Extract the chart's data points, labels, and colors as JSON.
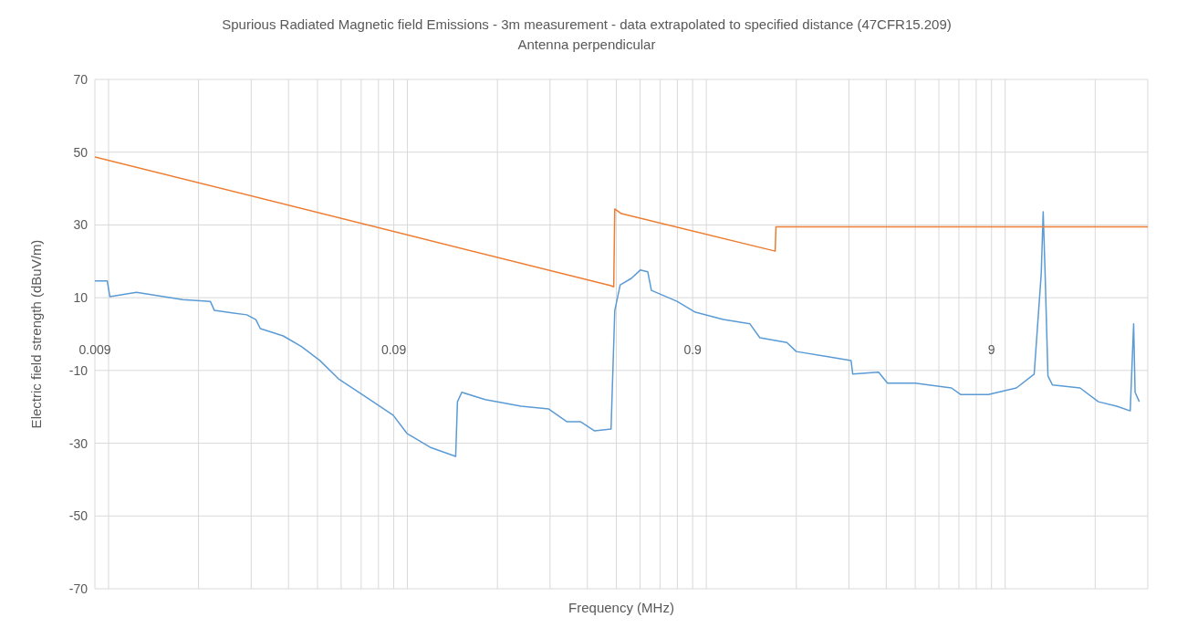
{
  "chart_data": {
    "type": "line",
    "title": "Spurious Radiated Magnetic field Emissions - 3m measurement - data extrapolated to specified distance (47CFR15.209)",
    "subtitle": "Antenna perpendicular",
    "xlabel": "Frequency (MHz)",
    "ylabel": "Electric field strength (dBuV/m)",
    "log": "x",
    "grid": true,
    "xlim": [
      0.009,
      30
    ],
    "xticks": [
      0.009,
      0.09,
      0.9,
      9
    ],
    "ylim": [
      -70,
      70
    ],
    "yticks": [
      -70,
      -50,
      -30,
      -10,
      10,
      30,
      50,
      70
    ],
    "series": [
      {
        "color": "#5b9bd5",
        "x": [
          0.009,
          0.0099,
          0.0101,
          0.0124,
          0.0177,
          0.0219,
          0.0226,
          0.029,
          0.0311,
          0.0322,
          0.0384,
          0.0443,
          0.051,
          0.0588,
          0.0726,
          0.0896,
          0.0996,
          0.119,
          0.145,
          0.147,
          0.152,
          0.182,
          0.24,
          0.297,
          0.342,
          0.38,
          0.423,
          0.48,
          0.494,
          0.515,
          0.561,
          0.601,
          0.637,
          0.655,
          0.798,
          0.919,
          1.14,
          1.4,
          1.51,
          1.86,
          2.0,
          2.47,
          3.05,
          3.09,
          3.77,
          4.04,
          5.0,
          6.61,
          7.09,
          8.78,
          10.9,
          12.5,
          13.2,
          13.4,
          13.6,
          13.9,
          14.4,
          17.8,
          20.5,
          23.6,
          26.2,
          26.9,
          27.2,
          28.1
        ],
        "values": [
          14.6,
          14.6,
          10.3,
          11.5,
          9.5,
          9.0,
          6.5,
          5.3,
          4.0,
          1.5,
          -0.5,
          -3.5,
          -7.3,
          -12.3,
          -17.3,
          -22.3,
          -27.3,
          -31.1,
          -33.6,
          -18.6,
          -16.0,
          -18.0,
          -19.8,
          -20.6,
          -24.1,
          -24.1,
          -26.6,
          -26.1,
          6.5,
          13.5,
          15.3,
          17.6,
          17.1,
          12.0,
          9.0,
          6.0,
          4.0,
          2.8,
          -1.0,
          -2.3,
          -4.8,
          -6.0,
          -7.3,
          -11.0,
          -10.5,
          -13.5,
          -13.5,
          -14.8,
          -16.6,
          -16.6,
          -14.8,
          -11.0,
          16.6,
          33.6,
          16.6,
          -11.5,
          -14.0,
          -14.8,
          -18.6,
          -19.8,
          -21.1,
          2.8,
          -16.0,
          -18.6
        ]
      },
      {
        "color": "#ed7d31",
        "x": [
          0.009,
          0.48,
          0.49,
          0.494,
          0.52,
          1.7,
          1.71,
          30
        ],
        "values": [
          48.7,
          13.3,
          13.0,
          34.4,
          33.1,
          22.8,
          29.5,
          29.5
        ]
      }
    ]
  }
}
